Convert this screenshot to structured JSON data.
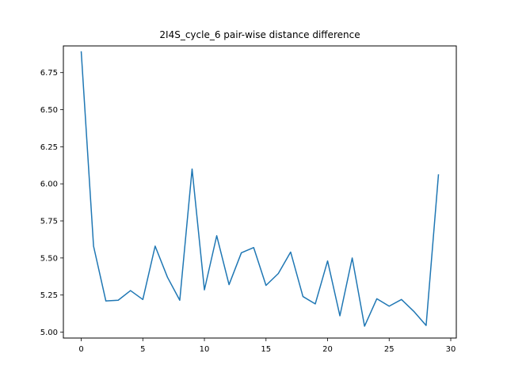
{
  "chart_data": {
    "type": "line",
    "title": "2I4S_cycle_6 pair-wise distance difference",
    "xlabel": "",
    "ylabel": "",
    "xlim": [
      -1.45,
      30.45
    ],
    "ylim": [
      4.96,
      6.93
    ],
    "x_ticks": [
      0,
      5,
      10,
      15,
      20,
      25,
      30
    ],
    "y_ticks": [
      5.0,
      5.25,
      5.5,
      5.75,
      6.0,
      6.25,
      6.5,
      6.75
    ],
    "y_tick_labels": [
      "5.00",
      "5.25",
      "5.50",
      "5.75",
      "6.00",
      "6.25",
      "6.50",
      "6.75"
    ],
    "grid": false,
    "series": [
      {
        "color": "#1f77b4",
        "x": [
          0,
          1,
          2,
          3,
          4,
          5,
          6,
          7,
          8,
          9,
          10,
          11,
          12,
          13,
          14,
          15,
          16,
          17,
          18,
          19,
          20,
          21,
          22,
          23,
          24,
          25,
          26,
          27,
          28,
          29
        ],
        "values": [
          6.89,
          5.58,
          5.21,
          5.215,
          5.28,
          5.22,
          5.58,
          5.37,
          5.215,
          6.1,
          5.285,
          5.65,
          5.32,
          5.535,
          5.57,
          5.315,
          5.395,
          5.54,
          5.24,
          5.19,
          5.48,
          5.11,
          5.5,
          5.04,
          5.225,
          5.175,
          5.22,
          5.14,
          5.045,
          6.06
        ]
      }
    ]
  }
}
